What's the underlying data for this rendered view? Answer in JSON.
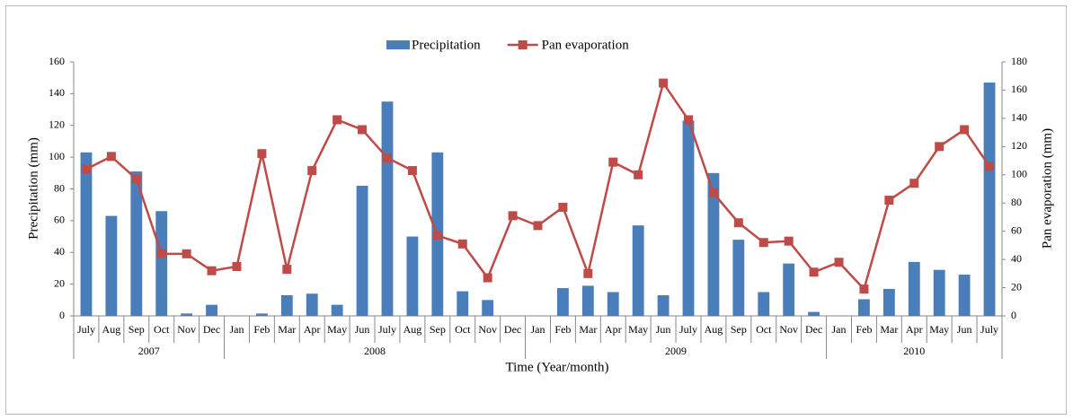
{
  "chart_data": {
    "type": "bar-line",
    "x_label": "Time (Year/month)",
    "y_label": "Precipitation (mm)",
    "y2_label": "Pan evaporation (mm)",
    "groups": [
      {
        "label": "2007",
        "categories": [
          "July",
          "Aug",
          "Sep",
          "Oct",
          "Nov",
          "Dec"
        ]
      },
      {
        "label": "2008",
        "categories": [
          "Jan",
          "Feb",
          "Mar",
          "Apr",
          "May",
          "Jun",
          "July",
          "Aug",
          "Sep",
          "Oct",
          "Nov",
          "Dec"
        ]
      },
      {
        "label": "2009",
        "categories": [
          "Jan",
          "Feb",
          "Mar",
          "Apr",
          "May",
          "Jun",
          "July",
          "Aug",
          "Sep",
          "Oct",
          "Nov",
          "Dec"
        ]
      },
      {
        "label": "2010",
        "categories": [
          "Jan",
          "Feb",
          "Mar",
          "Apr",
          "May",
          "Jun",
          "July"
        ]
      }
    ],
    "series": [
      {
        "name": "Precipitation",
        "type": "bar",
        "color": "#4a7ebb",
        "values": [
          103,
          63,
          91,
          66,
          1.5,
          7,
          0,
          1.5,
          13,
          14,
          7,
          82,
          135,
          50,
          103,
          15.5,
          10,
          0,
          0,
          17.5,
          19,
          15,
          57,
          13,
          123,
          90,
          48,
          15,
          33,
          2.5,
          0,
          10.5,
          17,
          34,
          29,
          26,
          147
        ]
      },
      {
        "name": "Pan evaporation",
        "type": "line",
        "axis": "y2",
        "color": "#be4b48",
        "values": [
          104,
          113,
          97,
          44,
          44,
          32,
          35,
          115,
          33,
          103,
          139,
          132,
          112,
          103,
          57,
          51,
          27,
          71,
          64,
          77,
          30,
          109,
          100,
          165,
          139,
          87,
          66,
          52,
          53,
          31,
          38,
          19,
          82,
          94,
          120,
          132,
          106
        ]
      }
    ],
    "ylim": [
      0,
      160
    ],
    "yticks": [
      0,
      20,
      40,
      60,
      80,
      100,
      120,
      140,
      160
    ],
    "y2lim": [
      0,
      180
    ],
    "y2ticks": [
      0,
      20,
      40,
      60,
      80,
      100,
      120,
      140,
      160,
      180
    ],
    "legend": "top"
  }
}
